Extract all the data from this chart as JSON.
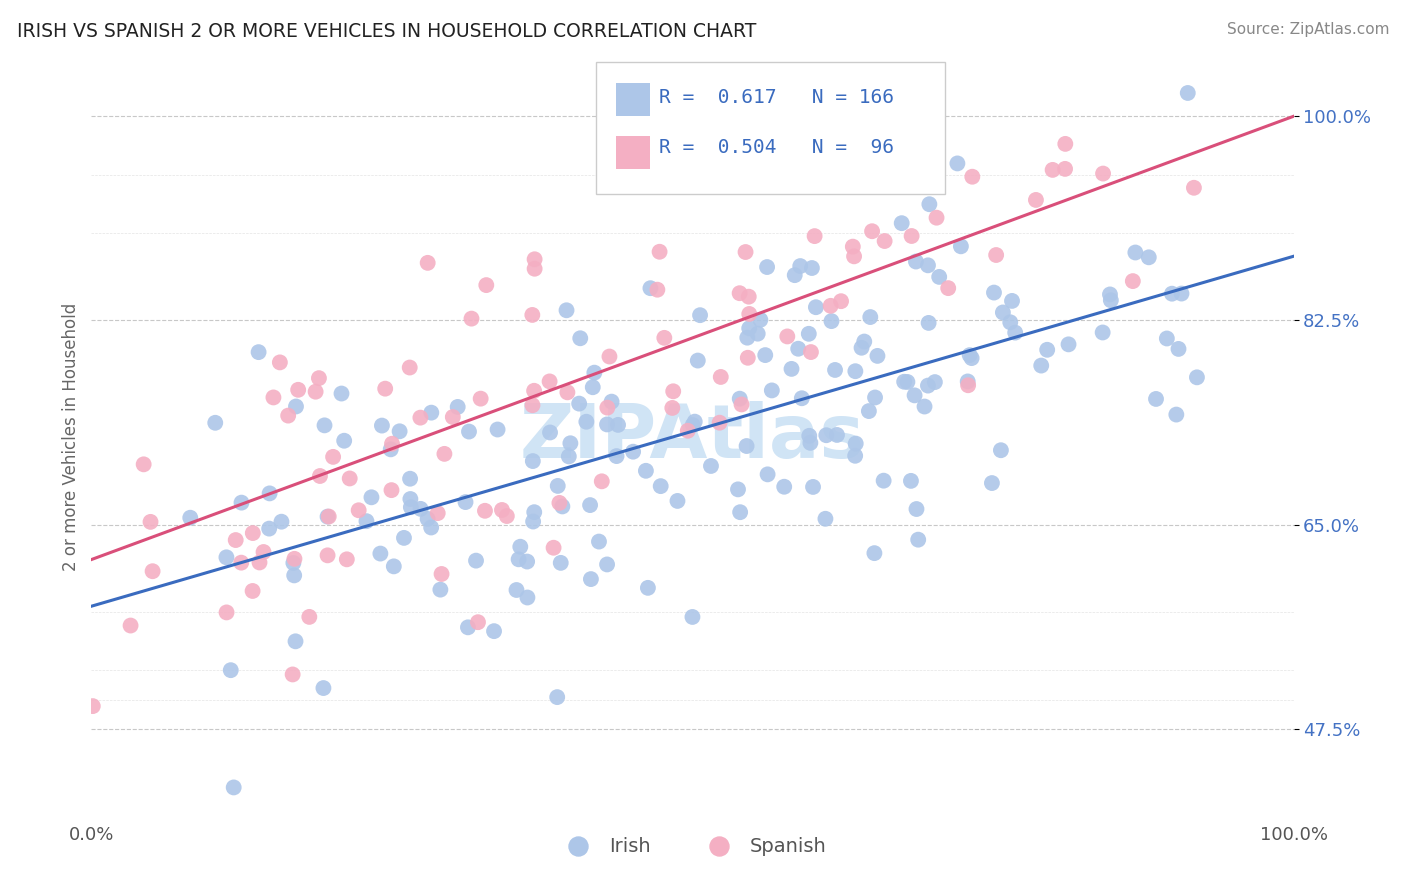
{
  "title": "IRISH VS SPANISH 2 OR MORE VEHICLES IN HOUSEHOLD CORRELATION CHART",
  "source": "Source: ZipAtlas.com",
  "ylabel": "2 or more Vehicles in Household",
  "xlabel": "",
  "xlim": [
    0.0,
    1.0
  ],
  "ylim": [
    0.4,
    1.05
  ],
  "irish_R": "0.617",
  "irish_N": "166",
  "spanish_R": "0.504",
  "spanish_N": "96",
  "irish_color": "#adc6e8",
  "spanish_color": "#f4afc3",
  "irish_line_color": "#3a6bbf",
  "spanish_line_color": "#d94f7a",
  "watermark_text": "ZIPAtlas",
  "watermark_color": "#d0e4f5",
  "background_color": "#ffffff",
  "grid_color": "#c8c8c8",
  "title_color": "#222222",
  "right_label_color": "#4472c4",
  "irish_seed": 42,
  "spanish_seed": 123,
  "irish_slope": 0.3,
  "irish_intercept": 0.58,
  "spanish_slope": 0.38,
  "spanish_intercept": 0.62,
  "irish_noise": 0.072,
  "spanish_noise": 0.072,
  "ytick_positions": [
    0.475,
    0.65,
    0.825,
    1.0
  ],
  "ytick_labels": [
    "47.5%",
    "65.0%",
    "82.5%",
    "100.0%"
  ]
}
